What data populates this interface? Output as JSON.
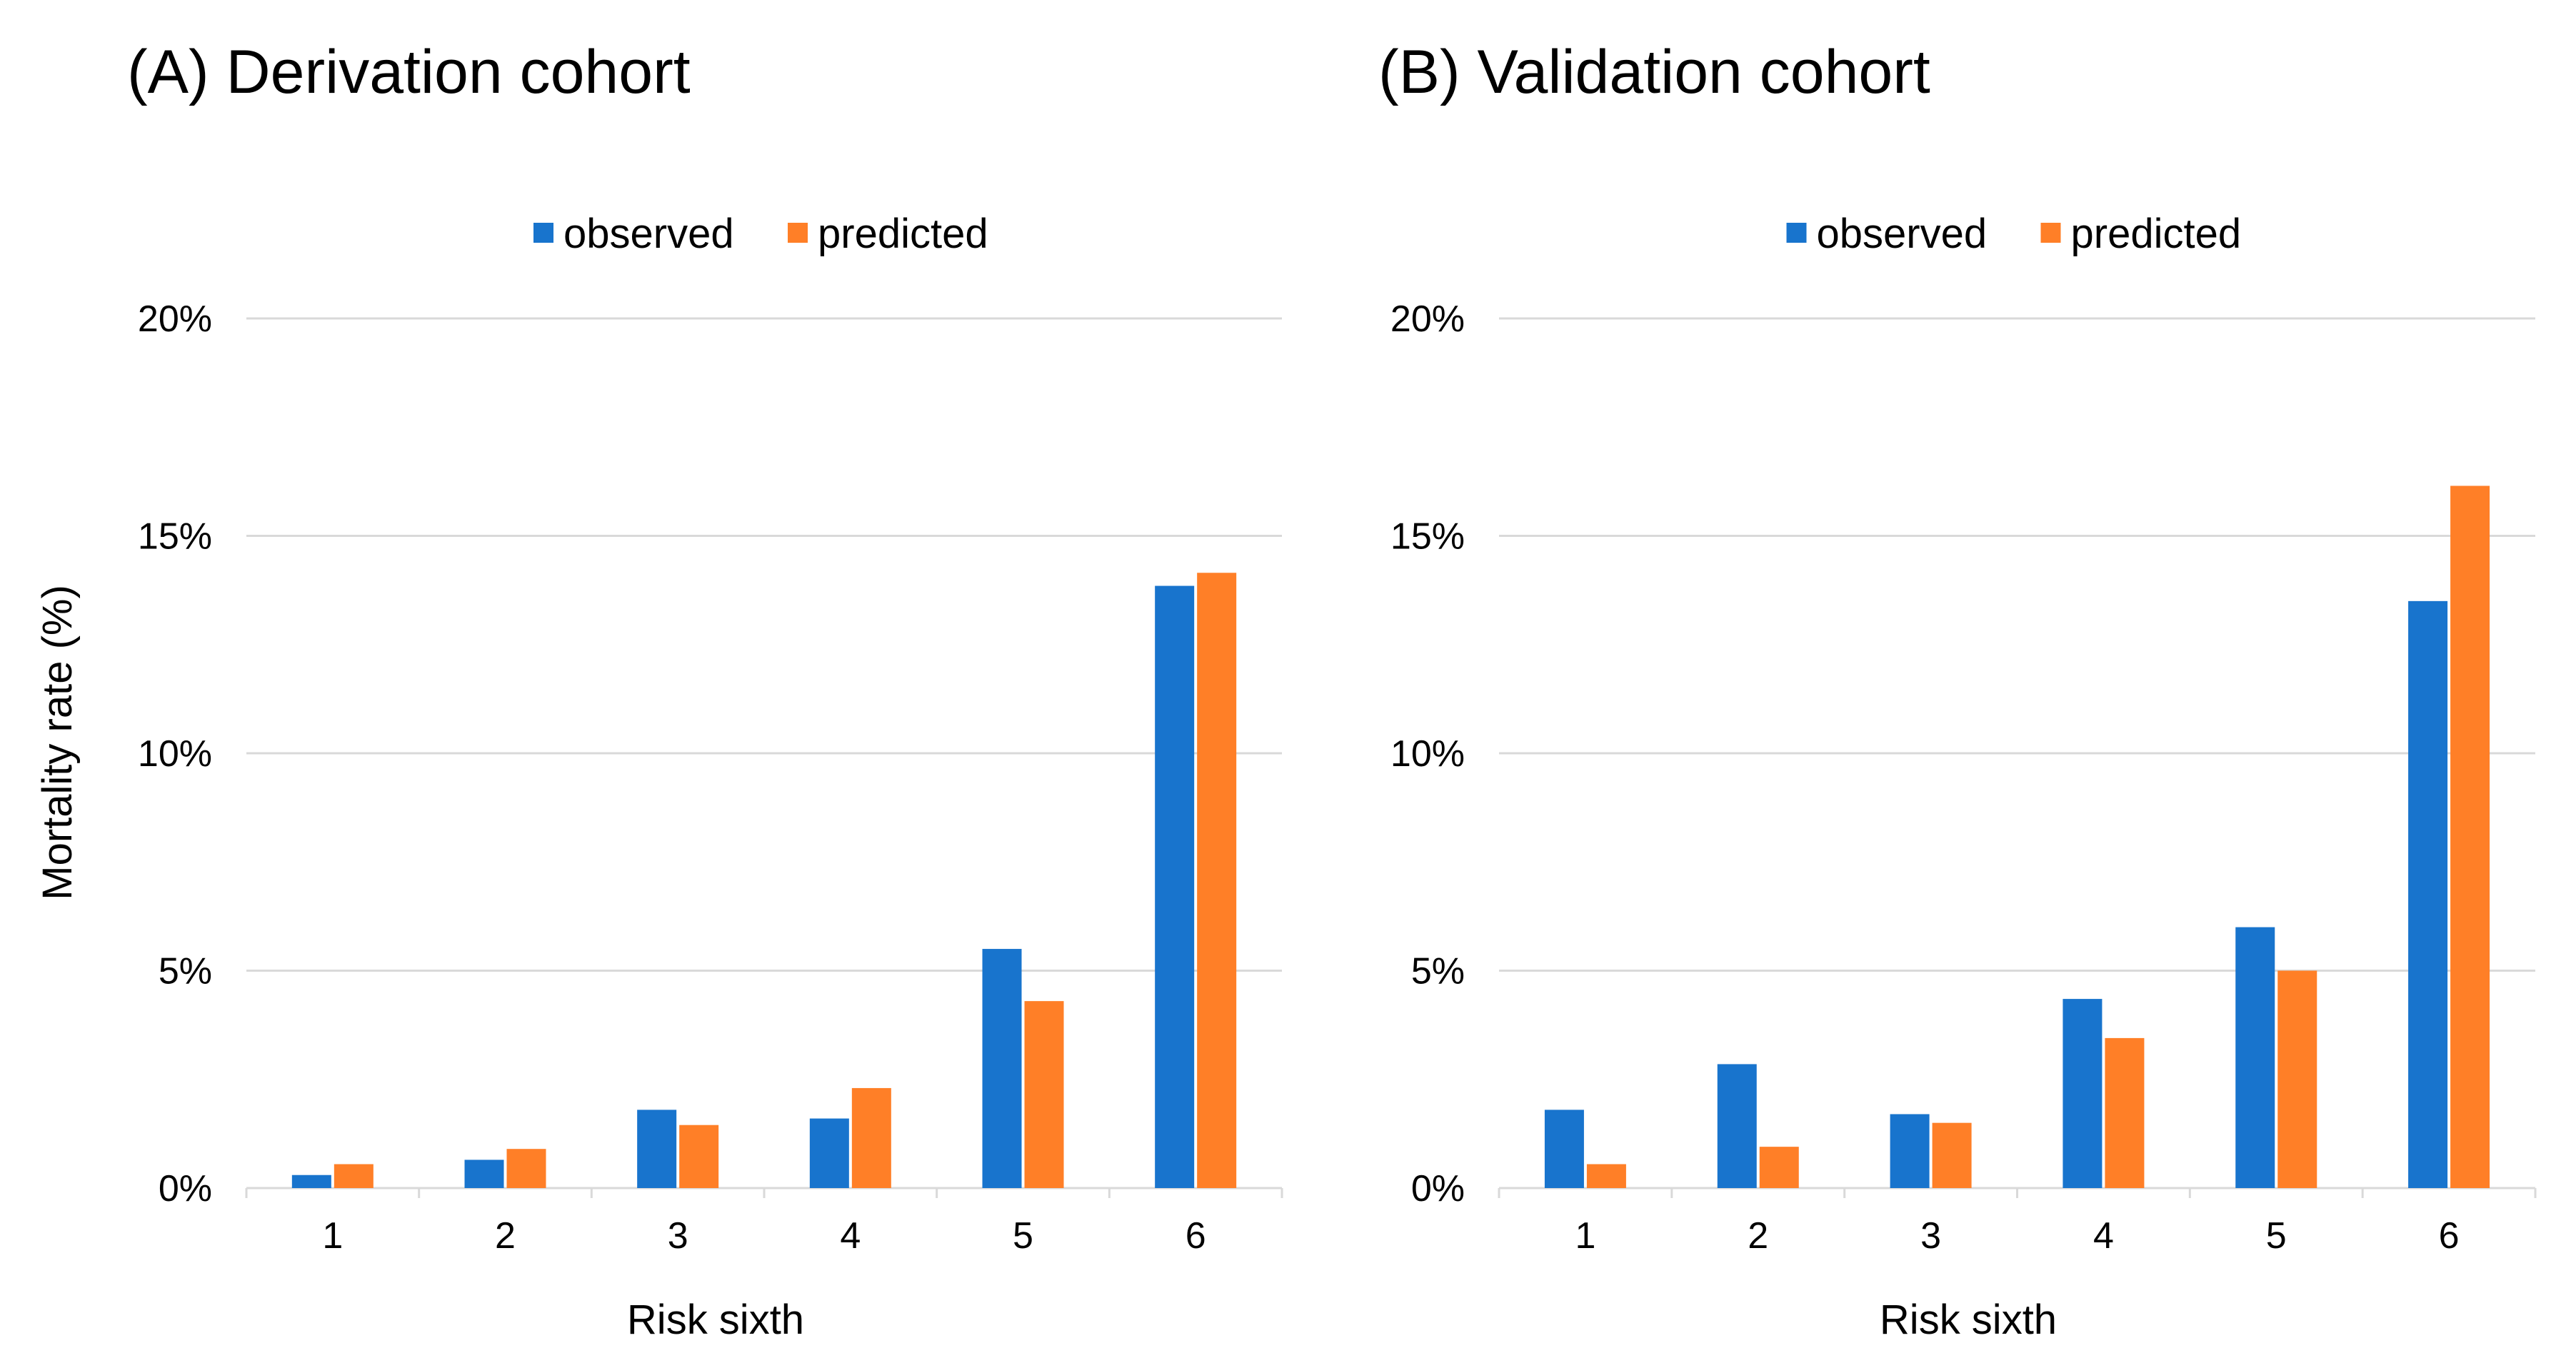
{
  "chart_data": [
    {
      "type": "bar",
      "title": "(A) Derivation cohort",
      "xlabel": "Risk sixth",
      "ylabel": "Mortality rate (%)",
      "categories": [
        "1",
        "2",
        "3",
        "4",
        "5",
        "6"
      ],
      "ylim": [
        0,
        20
      ],
      "yticks": [
        0,
        5,
        10,
        15,
        20
      ],
      "ytick_labels": [
        "0%",
        "5%",
        "10%",
        "15%",
        "20%"
      ],
      "grid": true,
      "legend_position": "top-center",
      "series": [
        {
          "name": "observed",
          "color": "#1874cd",
          "values": [
            0.3,
            0.65,
            1.8,
            1.6,
            5.5,
            13.85
          ]
        },
        {
          "name": "predicted",
          "color": "#ff7f27",
          "values": [
            0.55,
            0.9,
            1.45,
            2.3,
            4.3,
            14.15
          ]
        }
      ]
    },
    {
      "type": "bar",
      "title": "(B) Validation cohort",
      "xlabel": "Risk sixth",
      "ylabel": "",
      "categories": [
        "1",
        "2",
        "3",
        "4",
        "5",
        "6"
      ],
      "ylim": [
        0,
        20
      ],
      "yticks": [
        0,
        5,
        10,
        15,
        20
      ],
      "ytick_labels": [
        "0%",
        "5%",
        "10%",
        "15%",
        "20%"
      ],
      "grid": true,
      "legend_position": "top-center",
      "series": [
        {
          "name": "observed",
          "color": "#1874cd",
          "values": [
            1.8,
            2.85,
            1.7,
            4.35,
            6.0,
            13.5
          ]
        },
        {
          "name": "predicted",
          "color": "#ff7f27",
          "values": [
            0.55,
            0.95,
            1.5,
            3.45,
            5.0,
            16.15
          ]
        }
      ]
    }
  ]
}
